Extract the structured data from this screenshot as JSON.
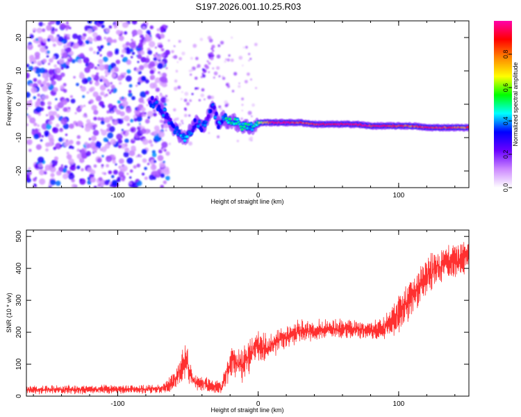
{
  "title": "S197.2026.001.10.25.R03",
  "chart_data": [
    {
      "type": "heatmap",
      "xlabel": "Height of straight line (km)",
      "ylabel": "Frequency (Hz)",
      "xlim": [
        -165,
        150
      ],
      "ylim": [
        -25,
        25
      ],
      "x_ticks": [
        -100,
        0,
        100
      ],
      "y_ticks": [
        -20,
        -10,
        0,
        10,
        20
      ],
      "ridge": {
        "x": [
          -77,
          -72,
          -68,
          -64,
          -60,
          -56,
          -52,
          -48,
          -44,
          -40,
          -36,
          -32,
          -28,
          -25,
          -22,
          -18,
          -14,
          -10,
          -6,
          -2,
          2,
          10,
          20,
          30,
          40,
          50,
          60,
          70,
          80,
          90,
          100,
          110,
          120,
          130,
          140,
          150
        ],
        "freq": [
          1,
          0,
          -2,
          -4,
          -7,
          -9,
          -10,
          -8,
          -5,
          -7,
          -4,
          -1,
          -6,
          -4,
          -5,
          -5,
          -6,
          -6.5,
          -7,
          -6.5,
          -5.5,
          -5.5,
          -5.5,
          -5.5,
          -6,
          -6,
          -6,
          -6,
          -6.5,
          -6.5,
          -6.5,
          -6.5,
          -7,
          -7,
          -7,
          -7
        ],
        "amplitude": [
          0.3,
          0.3,
          0.35,
          0.3,
          0.3,
          0.35,
          0.4,
          0.3,
          0.3,
          0.35,
          0.3,
          0.3,
          0.35,
          0.4,
          0.5,
          0.55,
          0.5,
          0.5,
          0.45,
          0.5,
          0.6,
          0.9,
          0.95,
          0.85,
          0.9,
          0.95,
          0.95,
          0.95,
          0.9,
          0.95,
          0.85,
          0.8,
          0.9,
          0.9,
          0.85,
          0.8
        ]
      },
      "colorbar": {
        "label": "Normalized spectral amplitude",
        "range": [
          0,
          1
        ],
        "ticks": [
          0.0,
          0.2,
          0.4,
          0.6,
          0.8
        ],
        "tick_labels": [
          "0.0",
          "0.2",
          "0.4",
          "0.6",
          "0.8"
        ],
        "colors": [
          "#ffffff",
          "#cc88ff",
          "#6a00ff",
          "#0000ff",
          "#00ffff",
          "#00ff00",
          "#ffff00",
          "#ff8800",
          "#ff0000",
          "#ff00aa"
        ]
      }
    },
    {
      "type": "line",
      "xlabel": "Height of straight line (km)",
      "ylabel": "SNR (10 * v/v)",
      "xlim": [
        -165,
        150
      ],
      "ylim": [
        0,
        520
      ],
      "x_ticks": [
        -100,
        0,
        100
      ],
      "y_ticks": [
        0,
        100,
        200,
        300,
        400,
        500
      ],
      "color": "#ff3030",
      "series": [
        {
          "name": "SNR",
          "x": [
            -165,
            -150,
            -140,
            -130,
            -120,
            -110,
            -100,
            -90,
            -80,
            -70,
            -65,
            -60,
            -57,
            -54,
            -52,
            -50,
            -47,
            -44,
            -40,
            -35,
            -30,
            -26,
            -22,
            -18,
            -14,
            -10,
            -6,
            -2,
            2,
            6,
            10,
            15,
            20,
            25,
            30,
            40,
            50,
            60,
            70,
            75,
            80,
            85,
            90,
            95,
            100,
            105,
            110,
            115,
            120,
            125,
            130,
            135,
            140,
            145,
            150
          ],
          "y": [
            20,
            20,
            21,
            20,
            21,
            22,
            20,
            22,
            22,
            24,
            32,
            45,
            70,
            95,
            110,
            95,
            60,
            40,
            40,
            35,
            30,
            25,
            80,
            120,
            100,
            105,
            130,
            155,
            150,
            150,
            160,
            180,
            185,
            195,
            200,
            205,
            210,
            210,
            208,
            205,
            205,
            210,
            215,
            240,
            255,
            290,
            315,
            345,
            370,
            390,
            405,
            415,
            425,
            430,
            440
          ],
          "spread": [
            12,
            14,
            14,
            14,
            14,
            14,
            14,
            14,
            14,
            15,
            20,
            30,
            40,
            50,
            55,
            50,
            35,
            25,
            25,
            22,
            22,
            20,
            50,
            60,
            60,
            60,
            65,
            55,
            50,
            50,
            45,
            40,
            40,
            40,
            40,
            35,
            35,
            35,
            30,
            30,
            30,
            35,
            40,
            50,
            60,
            65,
            60,
            65,
            70,
            70,
            65,
            60,
            55,
            55,
            50
          ]
        }
      ]
    }
  ]
}
